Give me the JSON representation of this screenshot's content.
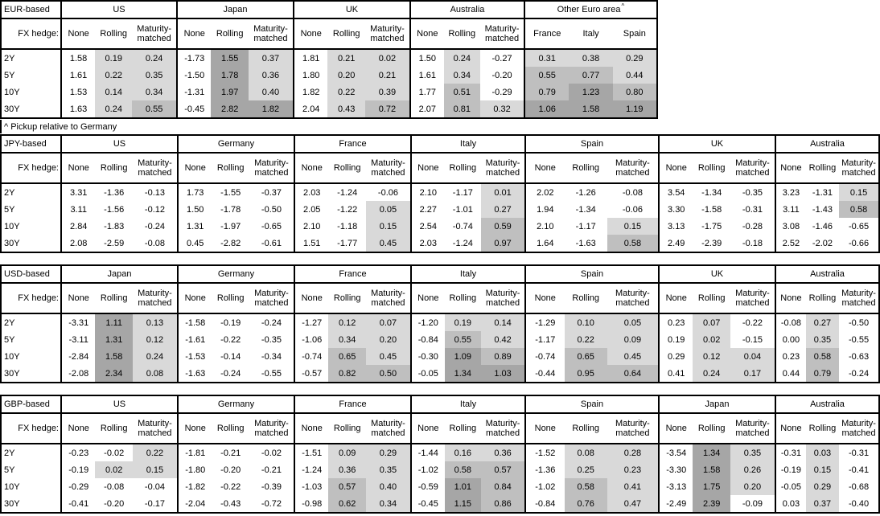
{
  "footnote": "^ Pickup relative to Germany",
  "fx_hedge_label": "FX hedge:",
  "tenors": [
    "2Y",
    "5Y",
    "10Y",
    "30Y"
  ],
  "colors": {
    "background": "#ffffff",
    "border": "#000000",
    "shade_light": "#d9d9d9",
    "shade_medium": "#bfbfbf",
    "shade_dark": "#a6a6a6"
  },
  "shading_rule": {
    "applies_to": "Rolling, Maturity-matched and pickup columns",
    "white_below": 0,
    "light_range": "0 to 0.5",
    "medium_range": "0.5 to 1.0",
    "dark_from": 1.0
  },
  "tables": [
    {
      "base_label": "EUR-based",
      "groups": [
        {
          "name": "US",
          "type": "hedge",
          "columns": [
            "None",
            "Rolling",
            "Maturity-matched"
          ],
          "rows": [
            [
              "1.58",
              "0.19",
              "0.24"
            ],
            [
              "1.61",
              "0.22",
              "0.35"
            ],
            [
              "1.53",
              "0.14",
              "0.34"
            ],
            [
              "1.63",
              "0.24",
              "0.55"
            ]
          ]
        },
        {
          "name": "Japan",
          "type": "hedge",
          "columns": [
            "None",
            "Rolling",
            "Maturity-matched"
          ],
          "rows": [
            [
              "-1.73",
              "1.55",
              "0.37"
            ],
            [
              "-1.50",
              "1.78",
              "0.36"
            ],
            [
              "-1.31",
              "1.97",
              "0.40"
            ],
            [
              "-0.45",
              "2.82",
              "1.82"
            ]
          ]
        },
        {
          "name": "UK",
          "type": "hedge",
          "columns": [
            "None",
            "Rolling",
            "Maturity-matched"
          ],
          "rows": [
            [
              "1.81",
              "0.21",
              "0.02"
            ],
            [
              "1.80",
              "0.20",
              "0.21"
            ],
            [
              "1.82",
              "0.22",
              "0.39"
            ],
            [
              "2.04",
              "0.43",
              "0.72"
            ]
          ]
        },
        {
          "name": "Australia",
          "type": "hedge",
          "columns": [
            "None",
            "Rolling",
            "Maturity-matched"
          ],
          "rows": [
            [
              "1.50",
              "0.24",
              "-0.27"
            ],
            [
              "1.61",
              "0.34",
              "-0.20"
            ],
            [
              "1.77",
              "0.51",
              "-0.29"
            ],
            [
              "2.07",
              "0.81",
              "0.32"
            ]
          ]
        },
        {
          "name": "Other Euro area",
          "superscript": "^",
          "type": "pickup",
          "columns": [
            "France",
            "Italy",
            "Spain"
          ],
          "rows": [
            [
              "0.31",
              "0.38",
              "0.29"
            ],
            [
              "0.55",
              "0.77",
              "0.44"
            ],
            [
              "0.79",
              "1.23",
              "0.80"
            ],
            [
              "1.06",
              "1.58",
              "1.19"
            ]
          ]
        }
      ]
    },
    {
      "base_label": "JPY-based",
      "groups": [
        {
          "name": "US",
          "type": "hedge",
          "columns": [
            "None",
            "Rolling",
            "Maturity-matched"
          ],
          "rows": [
            [
              "3.31",
              "-1.36",
              "-0.13"
            ],
            [
              "3.11",
              "-1.56",
              "-0.12"
            ],
            [
              "2.84",
              "-1.83",
              "-0.24"
            ],
            [
              "2.08",
              "-2.59",
              "-0.08"
            ]
          ]
        },
        {
          "name": "Germany",
          "type": "hedge",
          "columns": [
            "None",
            "Rolling",
            "Maturity-matched"
          ],
          "rows": [
            [
              "1.73",
              "-1.55",
              "-0.37"
            ],
            [
              "1.50",
              "-1.78",
              "-0.50"
            ],
            [
              "1.31",
              "-1.97",
              "-0.65"
            ],
            [
              "0.45",
              "-2.82",
              "-0.61"
            ]
          ]
        },
        {
          "name": "France",
          "type": "hedge",
          "columns": [
            "None",
            "Rolling",
            "Maturity-matched"
          ],
          "rows": [
            [
              "2.03",
              "-1.24",
              "-0.06"
            ],
            [
              "2.05",
              "-1.22",
              "0.05"
            ],
            [
              "2.10",
              "-1.18",
              "0.15"
            ],
            [
              "1.51",
              "-1.77",
              "0.45"
            ]
          ]
        },
        {
          "name": "Italy",
          "type": "hedge",
          "columns": [
            "None",
            "Rolling",
            "Maturity-matched"
          ],
          "rows": [
            [
              "2.10",
              "-1.17",
              "0.01"
            ],
            [
              "2.27",
              "-1.01",
              "0.27"
            ],
            [
              "2.54",
              "-0.74",
              "0.59"
            ],
            [
              "2.03",
              "-1.24",
              "0.97"
            ]
          ]
        },
        {
          "name": "Spain",
          "type": "hedge",
          "columns": [
            "None",
            "Rolling",
            "Maturity-matched"
          ],
          "rows": [
            [
              "2.02",
              "-1.26",
              "-0.08"
            ],
            [
              "1.94",
              "-1.34",
              "-0.06"
            ],
            [
              "2.10",
              "-1.17",
              "0.15"
            ],
            [
              "1.64",
              "-1.63",
              "0.58"
            ]
          ]
        },
        {
          "name": "UK",
          "type": "hedge",
          "columns": [
            "None",
            "Rolling",
            "Maturity-matched"
          ],
          "rows": [
            [
              "3.54",
              "-1.34",
              "-0.35"
            ],
            [
              "3.30",
              "-1.58",
              "-0.31"
            ],
            [
              "3.13",
              "-1.75",
              "-0.28"
            ],
            [
              "2.49",
              "-2.39",
              "-0.18"
            ]
          ]
        },
        {
          "name": "Australia",
          "type": "hedge",
          "columns": [
            "None",
            "Rolling",
            "Maturity-matched"
          ],
          "rows": [
            [
              "3.23",
              "-1.31",
              "0.15"
            ],
            [
              "3.11",
              "-1.43",
              "0.58"
            ],
            [
              "3.08",
              "-1.46",
              "-0.65"
            ],
            [
              "2.52",
              "-2.02",
              "-0.66"
            ]
          ]
        }
      ]
    },
    {
      "base_label": "USD-based",
      "groups": [
        {
          "name": "Japan",
          "type": "hedge",
          "columns": [
            "None",
            "Rolling",
            "Maturity-matched"
          ],
          "rows": [
            [
              "-3.31",
              "1.11",
              "0.13"
            ],
            [
              "-3.11",
              "1.31",
              "0.12"
            ],
            [
              "-2.84",
              "1.58",
              "0.24"
            ],
            [
              "-2.08",
              "2.34",
              "0.08"
            ]
          ]
        },
        {
          "name": "Germany",
          "type": "hedge",
          "columns": [
            "None",
            "Rolling",
            "Maturity-matched"
          ],
          "rows": [
            [
              "-1.58",
              "-0.19",
              "-0.24"
            ],
            [
              "-1.61",
              "-0.22",
              "-0.35"
            ],
            [
              "-1.53",
              "-0.14",
              "-0.34"
            ],
            [
              "-1.63",
              "-0.24",
              "-0.55"
            ]
          ]
        },
        {
          "name": "France",
          "type": "hedge",
          "columns": [
            "None",
            "Rolling",
            "Maturity-matched"
          ],
          "rows": [
            [
              "-1.27",
              "0.12",
              "0.07"
            ],
            [
              "-1.06",
              "0.34",
              "0.20"
            ],
            [
              "-0.74",
              "0.65",
              "0.45"
            ],
            [
              "-0.57",
              "0.82",
              "0.50"
            ]
          ]
        },
        {
          "name": "Italy",
          "type": "hedge",
          "columns": [
            "None",
            "Rolling",
            "Maturity-matched"
          ],
          "rows": [
            [
              "-1.20",
              "0.19",
              "0.14"
            ],
            [
              "-0.84",
              "0.55",
              "0.42"
            ],
            [
              "-0.30",
              "1.09",
              "0.89"
            ],
            [
              "-0.05",
              "1.34",
              "1.03"
            ]
          ]
        },
        {
          "name": "Spain",
          "type": "hedge",
          "columns": [
            "None",
            "Rolling",
            "Maturity-matched"
          ],
          "rows": [
            [
              "-1.29",
              "0.10",
              "0.05"
            ],
            [
              "-1.17",
              "0.22",
              "0.09"
            ],
            [
              "-0.74",
              "0.65",
              "0.45"
            ],
            [
              "-0.44",
              "0.95",
              "0.64"
            ]
          ]
        },
        {
          "name": "UK",
          "type": "hedge",
          "columns": [
            "None",
            "Rolling",
            "Maturity-matched"
          ],
          "rows": [
            [
              "0.23",
              "0.07",
              "-0.22"
            ],
            [
              "0.19",
              "0.02",
              "-0.15"
            ],
            [
              "0.29",
              "0.12",
              "0.04"
            ],
            [
              "0.41",
              "0.24",
              "0.17"
            ]
          ]
        },
        {
          "name": "Australia",
          "type": "hedge",
          "columns": [
            "None",
            "Rolling",
            "Maturity-matched"
          ],
          "rows": [
            [
              "-0.08",
              "0.27",
              "-0.50"
            ],
            [
              "0.00",
              "0.35",
              "-0.55"
            ],
            [
              "0.23",
              "0.58",
              "-0.63"
            ],
            [
              "0.44",
              "0.79",
              "-0.24"
            ]
          ]
        }
      ]
    },
    {
      "base_label": "GBP-based",
      "groups": [
        {
          "name": "US",
          "type": "hedge",
          "columns": [
            "None",
            "Rolling",
            "Maturity-matched"
          ],
          "rows": [
            [
              "-0.23",
              "-0.02",
              "0.22"
            ],
            [
              "-0.19",
              "0.02",
              "0.15"
            ],
            [
              "-0.29",
              "-0.08",
              "-0.04"
            ],
            [
              "-0.41",
              "-0.20",
              "-0.17"
            ]
          ]
        },
        {
          "name": "Germany",
          "type": "hedge",
          "columns": [
            "None",
            "Rolling",
            "Maturity-matched"
          ],
          "rows": [
            [
              "-1.81",
              "-0.21",
              "-0.02"
            ],
            [
              "-1.80",
              "-0.20",
              "-0.21"
            ],
            [
              "-1.82",
              "-0.22",
              "-0.39"
            ],
            [
              "-2.04",
              "-0.43",
              "-0.72"
            ]
          ]
        },
        {
          "name": "France",
          "type": "hedge",
          "columns": [
            "None",
            "Rolling",
            "Maturity-matched"
          ],
          "rows": [
            [
              "-1.51",
              "0.09",
              "0.29"
            ],
            [
              "-1.24",
              "0.36",
              "0.35"
            ],
            [
              "-1.03",
              "0.57",
              "0.40"
            ],
            [
              "-0.98",
              "0.62",
              "0.34"
            ]
          ]
        },
        {
          "name": "Italy",
          "type": "hedge",
          "columns": [
            "None",
            "Rolling",
            "Maturity-matched"
          ],
          "rows": [
            [
              "-1.44",
              "0.16",
              "0.36"
            ],
            [
              "-1.02",
              "0.58",
              "0.57"
            ],
            [
              "-0.59",
              "1.01",
              "0.84"
            ],
            [
              "-0.45",
              "1.15",
              "0.86"
            ]
          ]
        },
        {
          "name": "Spain",
          "type": "hedge",
          "columns": [
            "None",
            "Rolling",
            "Maturity-matched"
          ],
          "rows": [
            [
              "-1.52",
              "0.08",
              "0.28"
            ],
            [
              "-1.36",
              "0.25",
              "0.23"
            ],
            [
              "-1.02",
              "0.58",
              "0.41"
            ],
            [
              "-0.84",
              "0.76",
              "0.47"
            ]
          ]
        },
        {
          "name": "Japan",
          "type": "hedge",
          "columns": [
            "None",
            "Rolling",
            "Maturity-matched"
          ],
          "rows": [
            [
              "-3.54",
              "1.34",
              "0.35"
            ],
            [
              "-3.30",
              "1.58",
              "0.26"
            ],
            [
              "-3.13",
              "1.75",
              "0.20"
            ],
            [
              "-2.49",
              "2.39",
              "-0.09"
            ]
          ]
        },
        {
          "name": "Australia",
          "type": "hedge",
          "columns": [
            "None",
            "Rolling",
            "Maturity-matched"
          ],
          "rows": [
            [
              "-0.31",
              "0.03",
              "-0.31"
            ],
            [
              "-0.19",
              "0.15",
              "-0.41"
            ],
            [
              "-0.05",
              "0.29",
              "-0.68"
            ],
            [
              "0.03",
              "0.37",
              "-0.40"
            ]
          ]
        }
      ]
    }
  ]
}
